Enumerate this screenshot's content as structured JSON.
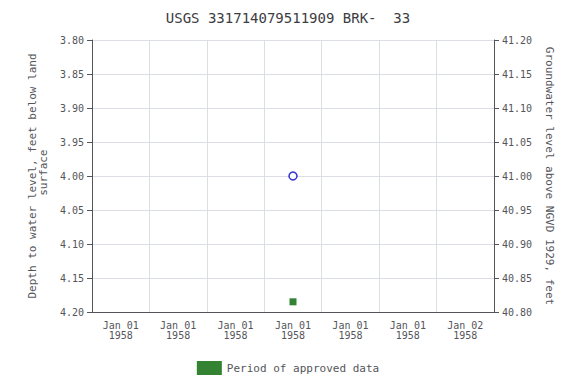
{
  "chart_data": {
    "type": "scatter",
    "title": "USGS 331714079511909 BRK-  33",
    "ylabel": "Depth to water level, feet below land\n surface",
    "y2label": "Groundwater level above NGVD 1929, feet",
    "categories": [
      "Jan 01\n1958",
      "Jan 01\n1958",
      "Jan 01\n1958",
      "Jan 01\n1958",
      "Jan 01\n1958",
      "Jan 01\n1958",
      "Jan 02\n1958"
    ],
    "series": [
      {
        "values": [
          null,
          null,
          null,
          4.0,
          null,
          null,
          null
        ],
        "color": "#0000cc",
        "marker": "open_circle"
      },
      {
        "name": "Period of approved data",
        "values": [
          null,
          null,
          null,
          4.185,
          null,
          null,
          null
        ],
        "color": "#006400",
        "marker": "square"
      }
    ],
    "ylim": [
      4.2,
      3.8
    ],
    "yticks": [
      {
        "value": 3.8,
        "label": "3.80"
      },
      {
        "value": 3.85,
        "label": "3.85"
      },
      {
        "value": 3.9,
        "label": "3.90"
      },
      {
        "value": 3.95,
        "label": "3.95"
      },
      {
        "value": 4.0,
        "label": "4.00"
      },
      {
        "value": 4.05,
        "label": "4.05"
      },
      {
        "value": 4.1,
        "label": "4.10"
      },
      {
        "value": 4.15,
        "label": "4.15"
      },
      {
        "value": 4.2,
        "label": "4.20"
      }
    ],
    "y2lim": [
      40.8,
      41.2
    ],
    "y2ticks": [
      {
        "value": 41.2,
        "label": "41.20"
      },
      {
        "value": 41.15,
        "label": "41.15"
      },
      {
        "value": 41.1,
        "label": "41.10"
      },
      {
        "value": 41.05,
        "label": "41.05"
      },
      {
        "value": 41.0,
        "label": "41.00"
      },
      {
        "value": 40.95,
        "label": "40.95"
      },
      {
        "value": 40.9,
        "label": "40.90"
      },
      {
        "value": 40.85,
        "label": "40.85"
      },
      {
        "value": 40.8,
        "label": "40.80"
      }
    ],
    "grid": true,
    "legend": "bottom"
  }
}
